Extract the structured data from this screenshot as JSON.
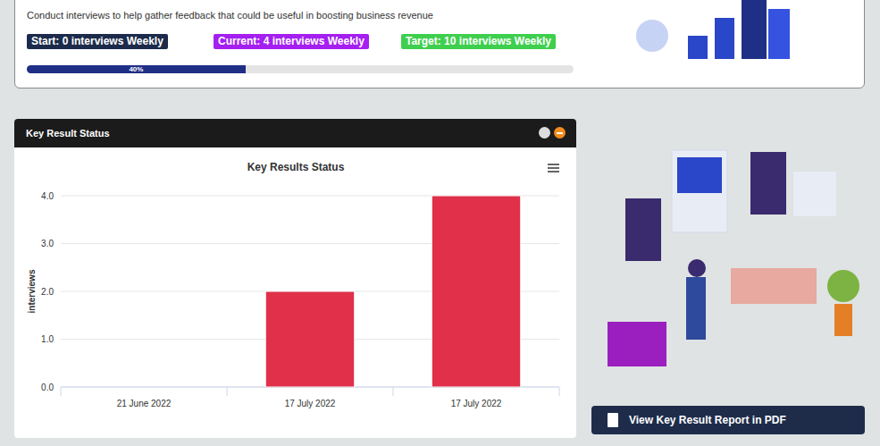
{
  "header": {
    "description": "Conduct interviews to help gather feedback that could be useful in boosting business revenue",
    "badges": [
      "Start: 0 interviews Weekly",
      "Current: 4 interviews Weekly",
      "Target: 10 interviews Weekly"
    ],
    "progress": {
      "value": 40,
      "label": "40%"
    }
  },
  "chart_panel": {
    "title": "Key Result Status"
  },
  "chart_data": {
    "type": "bar",
    "title": "Key Results Status",
    "y_label": "interviews",
    "categories": [
      "21 June 2022",
      "17 July 2022",
      "17 July 2022"
    ],
    "values": [
      0,
      2,
      4
    ],
    "color": "#e0304a",
    "ylim": [
      0,
      4
    ],
    "yticks": [
      {
        "value": 0,
        "label": "0.0"
      },
      {
        "value": 1,
        "label": "1.0"
      },
      {
        "value": 2,
        "label": "2.0"
      },
      {
        "value": 3,
        "label": "3.0"
      },
      {
        "value": 4,
        "label": "4.0"
      }
    ],
    "grid": true
  },
  "button": {
    "label": "View Key Result Report in PDF"
  }
}
